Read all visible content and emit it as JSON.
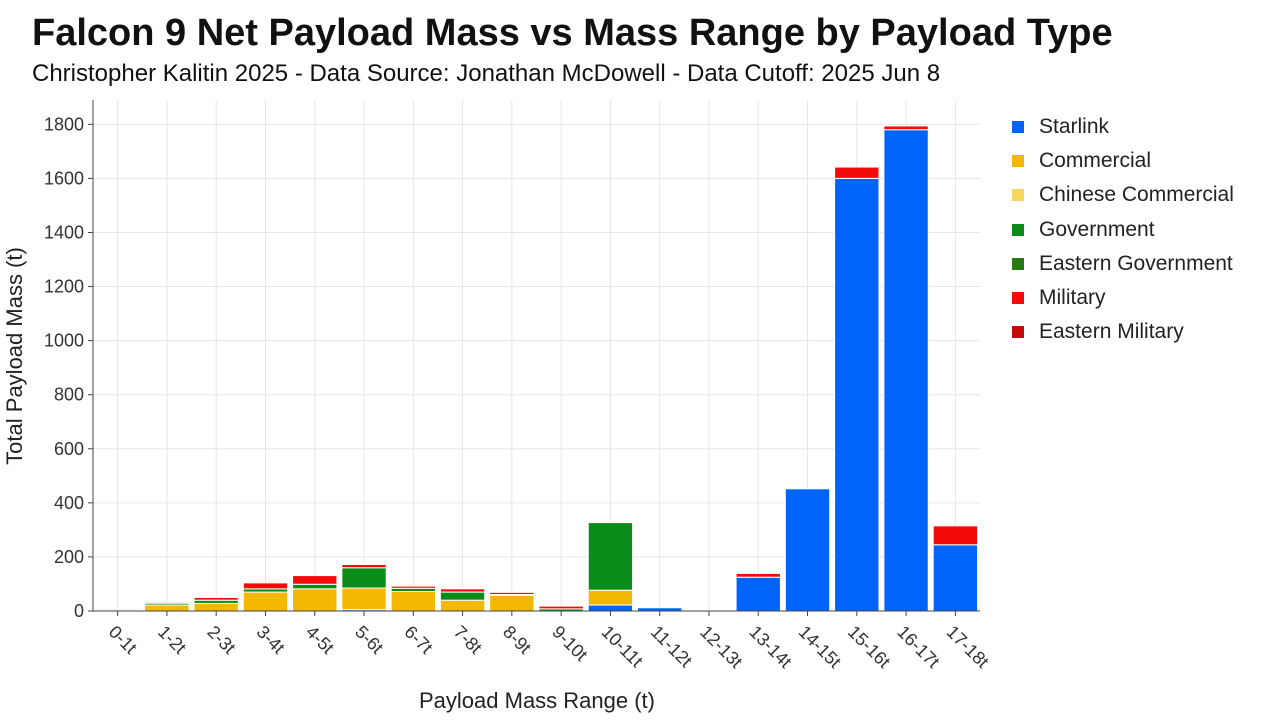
{
  "header": {
    "title": "Falcon 9 Net Payload Mass vs Mass Range by Payload Type",
    "subtitle": "Christopher Kalitin 2025 - Data Source: Jonathan McDowell - Data Cutoff: 2025 Jun 8"
  },
  "chart_data": {
    "type": "bar",
    "stacked": true,
    "title": "Falcon 9 Net Payload Mass vs Mass Range by Payload Type",
    "subtitle": "Christopher Kalitin 2025 - Data Source: Jonathan McDowell - Data Cutoff: 2025 Jun 8",
    "xlabel": "Payload Mass Range (t)",
    "ylabel": "Total Payload Mass (t)",
    "ylim": [
      0,
      1890
    ],
    "yticks": [
      0,
      200,
      400,
      600,
      800,
      1000,
      1200,
      1400,
      1600,
      1800
    ],
    "grid": true,
    "legend_position": "right",
    "categories": [
      "0-1t",
      "1-2t",
      "2-3t",
      "3-4t",
      "4-5t",
      "5-6t",
      "6-7t",
      "7-8t",
      "8-9t",
      "9-10t",
      "10-11t",
      "11-12t",
      "12-13t",
      "13-14t",
      "14-15t",
      "15-16t",
      "16-17t",
      "17-18t"
    ],
    "series": [
      {
        "name": "Starlink",
        "color": "#0064FA",
        "values": [
          0,
          0,
          0,
          0,
          0,
          5,
          0,
          0,
          0,
          0,
          22,
          12,
          0,
          125,
          452,
          1600,
          1780,
          245
        ]
      },
      {
        "name": "Commercial",
        "color": "#F5B800",
        "values": [
          3,
          22,
          28,
          70,
          82,
          80,
          72,
          40,
          58,
          0,
          55,
          0,
          0,
          0,
          0,
          0,
          0,
          0
        ]
      },
      {
        "name": "Chinese Commercial",
        "color": "#F8D560",
        "values": [
          0,
          0,
          0,
          0,
          0,
          0,
          0,
          0,
          0,
          0,
          0,
          0,
          0,
          0,
          0,
          0,
          0,
          0
        ]
      },
      {
        "name": "Government",
        "color": "#0A8C19",
        "values": [
          0,
          7,
          12,
          12,
          17,
          75,
          12,
          30,
          3,
          8,
          250,
          0,
          0,
          0,
          0,
          0,
          0,
          0
        ]
      },
      {
        "name": "Eastern Government",
        "color": "#2A7A12",
        "values": [
          0,
          0,
          0,
          0,
          0,
          0,
          0,
          0,
          0,
          0,
          0,
          0,
          0,
          0,
          0,
          0,
          0,
          0
        ]
      },
      {
        "name": "Military",
        "color": "#F50A0A",
        "values": [
          4,
          4,
          10,
          22,
          32,
          12,
          8,
          12,
          8,
          10,
          0,
          0,
          0,
          14,
          0,
          42,
          14,
          70
        ]
      },
      {
        "name": "Eastern Military",
        "color": "#C40A0A",
        "values": [
          0,
          0,
          0,
          0,
          0,
          0,
          0,
          0,
          0,
          0,
          0,
          0,
          0,
          0,
          0,
          0,
          0,
          0
        ]
      }
    ]
  }
}
